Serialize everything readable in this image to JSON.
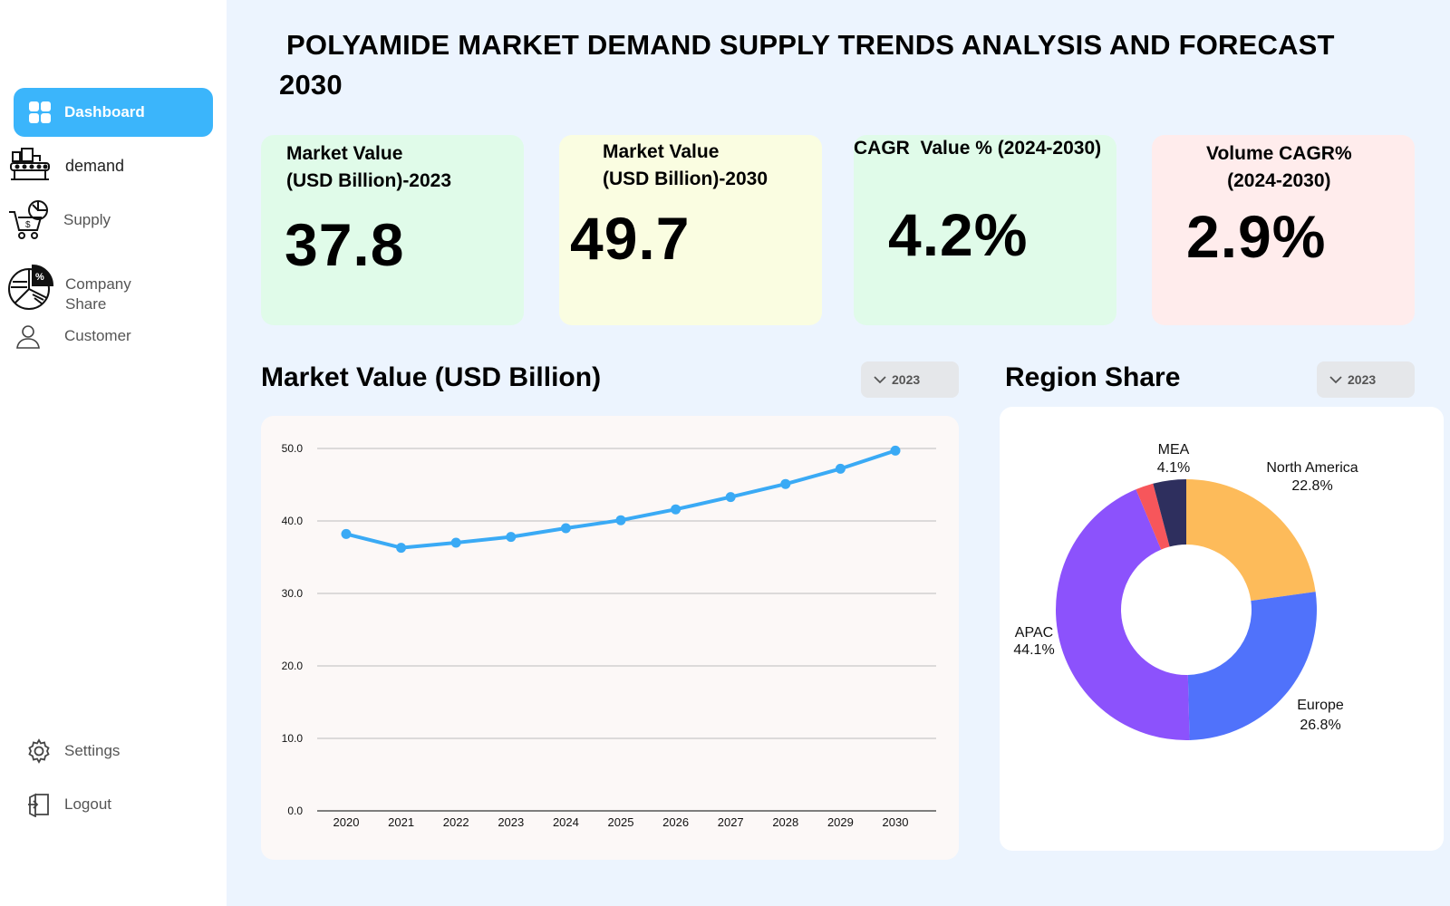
{
  "title": {
    "line1": "POLYAMIDE MARKET DEMAND SUPPLY TRENDS ANALYSIS AND FORECAST",
    "line2": "2030"
  },
  "sidebar": {
    "items": [
      {
        "label": "Dashboard",
        "icon": "dashboard-grid-icon",
        "active": true
      },
      {
        "label": "demand",
        "icon": "factory-conveyor-icon"
      },
      {
        "label": "Supply",
        "icon": "cart-dollar-icon"
      },
      {
        "label": "Company\nShare",
        "label_line1": "Company",
        "label_line2": "Share",
        "icon": "pie-percent-icon"
      },
      {
        "label": "Customer",
        "icon": "user-icon"
      }
    ],
    "settings_label": "Settings",
    "logout_label": "Logout"
  },
  "kpis": [
    {
      "label_line1": "Market Value",
      "label_line2": "(USD Billion)-2023",
      "value": "37.8",
      "bg": "#e0fbe9"
    },
    {
      "label_line1": "Market Value",
      "label_line2": "(USD Billion)-2030",
      "value": "49.7",
      "bg": "#fafde1"
    },
    {
      "label_line1": "CAGR  Value % (2024-2030)",
      "label_line2": "",
      "value": "4.2%",
      "bg": "#e0fbe9"
    },
    {
      "label_line1": "Volume CAGR%",
      "label_line2": "(2024-2030)",
      "value": "2.9%",
      "bg": "#ffecec"
    }
  ],
  "market_value_section": {
    "title": "Market Value (USD Billion)",
    "dropdown_value": "2023"
  },
  "region_share_section": {
    "title": "Region Share",
    "dropdown_value": "2023"
  },
  "colors": {
    "accent": "#3bb5fb",
    "line": "#3aaaf5",
    "north_america": "#fdbb5a",
    "europe": "#5072fb",
    "apac": "#8c52fc",
    "mea_red": "#f7565b",
    "mea_navy": "#2e2f5e"
  },
  "chart_data": [
    {
      "type": "line",
      "title": "",
      "xlabel": "",
      "ylabel": "",
      "x": [
        "2020",
        "2021",
        "2022",
        "2023",
        "2024",
        "2025",
        "2026",
        "2027",
        "2028",
        "2029",
        "2030"
      ],
      "series": [
        {
          "values": [
            38.2,
            36.3,
            37.0,
            37.8,
            39.0,
            40.1,
            41.6,
            43.3,
            45.1,
            47.2,
            49.7
          ]
        }
      ],
      "ylim": [
        0,
        50
      ],
      "yticks": [
        "0.0",
        "10.0",
        "20.0",
        "30.0",
        "40.0",
        "50.0"
      ],
      "grid": true
    },
    {
      "type": "pie",
      "donut": true,
      "slices": [
        {
          "name": "North America",
          "value": 22.8,
          "label": "22.8%",
          "color": "#fdbb5a"
        },
        {
          "name": "Europe",
          "value": 26.8,
          "label": "26.8%",
          "color": "#5072fb"
        },
        {
          "name": "APAC",
          "value": 44.1,
          "label": "44.1%",
          "color": "#8c52fc"
        },
        {
          "name": "",
          "value": 2.2,
          "label": "",
          "color": "#f7565b"
        },
        {
          "name": "MEA",
          "value": 4.1,
          "label": "4.1%",
          "color": "#2e2f5e"
        }
      ]
    }
  ]
}
